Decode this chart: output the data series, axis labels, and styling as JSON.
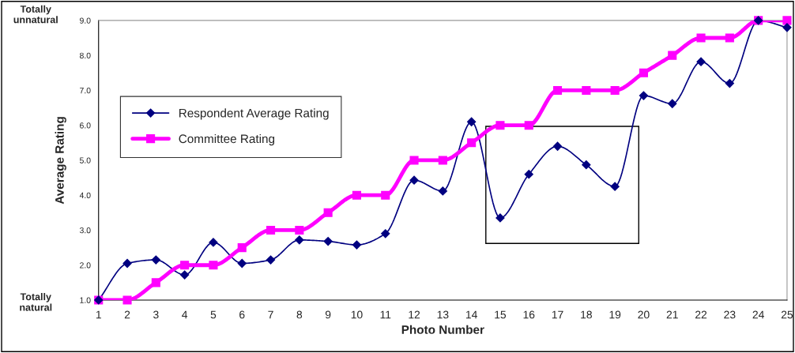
{
  "chart_data": {
    "type": "line",
    "xlabel": "Photo Number",
    "ylabel": "Average Rating",
    "x": [
      1,
      2,
      3,
      4,
      5,
      6,
      7,
      8,
      9,
      10,
      11,
      12,
      13,
      14,
      15,
      16,
      17,
      18,
      19,
      20,
      21,
      22,
      23,
      24,
      25
    ],
    "series": [
      {
        "name": "Respondent Average Rating",
        "color": "#000080",
        "marker": "diamond",
        "values": [
          1.0,
          2.05,
          2.15,
          1.72,
          2.65,
          2.05,
          2.15,
          2.72,
          2.68,
          2.58,
          2.9,
          4.43,
          4.12,
          6.1,
          3.35,
          4.6,
          5.4,
          4.87,
          4.25,
          6.85,
          6.62,
          7.82,
          7.2,
          9.0,
          8.8
        ]
      },
      {
        "name": "Committee Rating",
        "color": "#ff00ff",
        "marker": "square",
        "values": [
          1,
          1,
          1.5,
          2,
          2,
          2.5,
          3,
          3,
          3.5,
          4,
          4,
          5,
          5,
          5.5,
          6,
          6,
          7,
          7,
          7,
          7.5,
          8,
          8.5,
          8.5,
          9,
          9
        ]
      }
    ],
    "xlim": [
      1,
      25
    ],
    "xticks": [
      1,
      2,
      3,
      4,
      5,
      6,
      7,
      8,
      9,
      10,
      11,
      12,
      13,
      14,
      15,
      16,
      17,
      18,
      19,
      20,
      21,
      22,
      23,
      24,
      25
    ],
    "ylim": [
      1,
      9
    ],
    "yticks": [
      {
        "value": 1,
        "label": "1.0"
      },
      {
        "value": 2,
        "label": "2.0"
      },
      {
        "value": 3,
        "label": "3.0"
      },
      {
        "value": 4,
        "label": "4.0"
      },
      {
        "value": 5,
        "label": "5.0"
      },
      {
        "value": 6,
        "label": "6.0"
      },
      {
        "value": 7,
        "label": "7.0"
      },
      {
        "value": 8,
        "label": "8.0"
      },
      {
        "value": 9,
        "label": "9.0"
      }
    ],
    "annotations": [
      "Totally unnatural",
      "Totally natural"
    ],
    "legend": "left",
    "grid": false
  }
}
